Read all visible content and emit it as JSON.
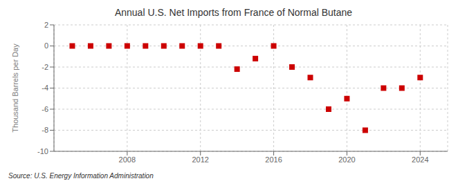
{
  "chart_data": {
    "type": "scatter",
    "title": "Annual U.S. Net Imports from France of Normal Butane",
    "y_label": "Thousand Barrels per Day",
    "annotation": "Source: U.S. Energy Information Administration",
    "x": [
      2005,
      2006,
      2007,
      2008,
      2009,
      2010,
      2011,
      2012,
      2013,
      2014,
      2015,
      2016,
      2017,
      2018,
      2019,
      2020,
      2021,
      2022,
      2023,
      2024
    ],
    "values": [
      0,
      0,
      0,
      0,
      0,
      0,
      0,
      0,
      0,
      -2.2,
      -1.2,
      0,
      -2.0,
      -3.0,
      -6.0,
      -5.0,
      -8.0,
      -4.0,
      -4.0,
      -3.0
    ],
    "color": "#cc0000",
    "marker": "square",
    "xlim": [
      2004.0,
      2025.5
    ],
    "xticks": [
      2008,
      2012,
      2016,
      2020,
      2024
    ],
    "ylim": [
      -10,
      2
    ],
    "yticks": [
      -10,
      -8,
      -6,
      -4,
      -2,
      0,
      2
    ],
    "grid": true
  }
}
